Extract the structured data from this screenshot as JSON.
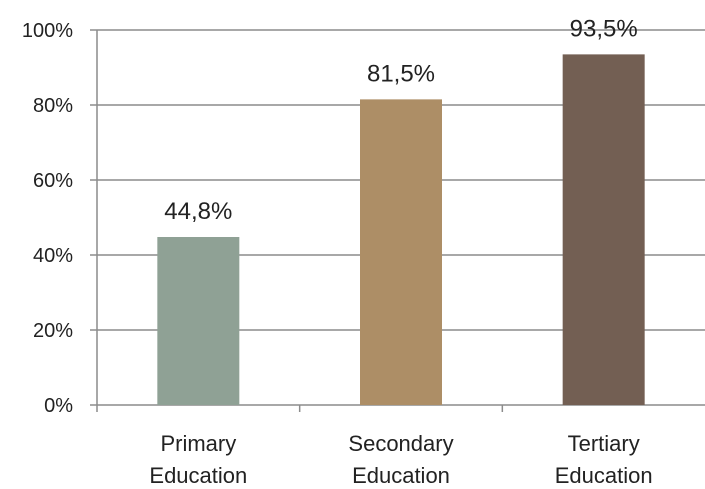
{
  "chart_data": {
    "type": "bar",
    "categories": [
      [
        "Primary",
        "Education"
      ],
      [
        "Secondary",
        "Education"
      ],
      [
        "Tertiary",
        "Education"
      ]
    ],
    "values": [
      44.8,
      81.5,
      93.5
    ],
    "data_labels": [
      "44,8%",
      "81,5%",
      "93,5%"
    ],
    "colors": [
      "#8fa195",
      "#ad8e66",
      "#735f53"
    ],
    "ylim": [
      0,
      100
    ],
    "yticks": [
      0,
      20,
      40,
      60,
      80,
      100
    ],
    "ytick_labels": [
      "0%",
      "20%",
      "40%",
      "60%",
      "80%",
      "100%"
    ],
    "grid": true,
    "title": "",
    "xlabel": "",
    "ylabel": ""
  }
}
